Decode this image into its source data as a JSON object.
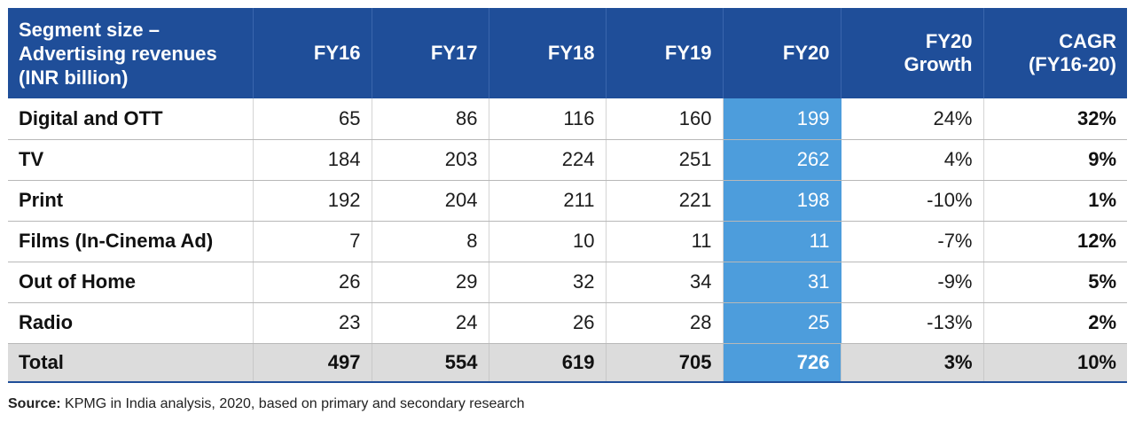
{
  "table": {
    "header": {
      "segment_line1": "Segment size –",
      "segment_line2": "Advertising revenues",
      "segment_line3": "(INR billion)",
      "fy16": "FY16",
      "fy17": "FY17",
      "fy18": "FY18",
      "fy19": "FY19",
      "fy20": "FY20",
      "growth_line1": "FY20",
      "growth_line2": "Growth",
      "cagr_line1": "CAGR",
      "cagr_line2": "(FY16-20)"
    },
    "rows": [
      {
        "segment": "Digital and OTT",
        "fy16": "65",
        "fy17": "86",
        "fy18": "116",
        "fy19": "160",
        "fy20": "199",
        "growth": "24%",
        "cagr": "32%"
      },
      {
        "segment": "TV",
        "fy16": "184",
        "fy17": "203",
        "fy18": "224",
        "fy19": "251",
        "fy20": "262",
        "growth": "4%",
        "cagr": "9%"
      },
      {
        "segment": "Print",
        "fy16": "192",
        "fy17": "204",
        "fy18": "211",
        "fy19": "221",
        "fy20": "198",
        "growth": "-10%",
        "cagr": "1%"
      },
      {
        "segment": "Films (In-Cinema Ad)",
        "fy16": "7",
        "fy17": "8",
        "fy18": "10",
        "fy19": "11",
        "fy20": "11",
        "growth": "-7%",
        "cagr": "12%"
      },
      {
        "segment": "Out of Home",
        "fy16": "26",
        "fy17": "29",
        "fy18": "32",
        "fy19": "34",
        "fy20": "31",
        "growth": "-9%",
        "cagr": "5%"
      },
      {
        "segment": "Radio",
        "fy16": "23",
        "fy17": "24",
        "fy18": "26",
        "fy19": "28",
        "fy20": "25",
        "growth": "-13%",
        "cagr": "2%"
      }
    ],
    "total": {
      "segment": "Total",
      "fy16": "497",
      "fy17": "554",
      "fy18": "619",
      "fy19": "705",
      "fy20": "726",
      "growth": "3%",
      "cagr": "10%"
    }
  },
  "source": {
    "label": "Source:",
    "text": " KPMG in India analysis, 2020, based on primary and secondary research"
  },
  "colors": {
    "header_bg": "#1f4e99",
    "fy20_highlight": "#4d9ddc",
    "total_bg": "#dcdcdc"
  }
}
